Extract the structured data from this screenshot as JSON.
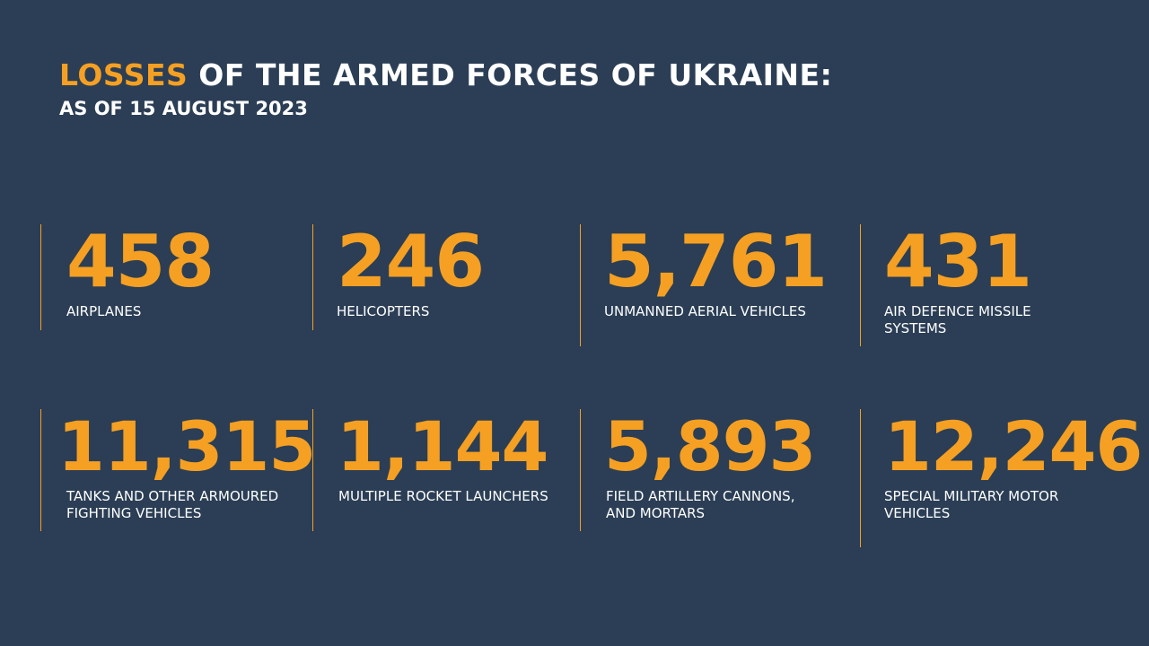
{
  "header": {
    "title_accent": "LOSSES",
    "title_rest": " OF THE ARMED FORCES OF UKRAINE:",
    "subtitle": "AS OF 15 AUGUST 2023"
  },
  "colors": {
    "background": "#2b3e55",
    "accent": "#f5a023",
    "text": "#ffffff"
  },
  "stats": [
    {
      "value": "458",
      "label": "AIRPLANES"
    },
    {
      "value": "246",
      "label": "HELICOPTERS"
    },
    {
      "value": "5,761",
      "label": "UNMANNED AERIAL VEHICLES"
    },
    {
      "value": "431",
      "label": "AIR DEFENCE MISSILE\nSYSTEMS"
    },
    {
      "value": "11,315",
      "label": "TANKS AND OTHER ARMOURED\nFIGHTING VEHICLES"
    },
    {
      "value": "1,144",
      "label": "MULTIPLE ROCKET LAUNCHERS"
    },
    {
      "value": "5,893",
      "label": "FIELD ARTILLERY CANNONS,\nAND MORTARS"
    },
    {
      "value": "12,246",
      "label": "SPECIAL MILITARY MOTOR\nVEHICLES"
    }
  ]
}
